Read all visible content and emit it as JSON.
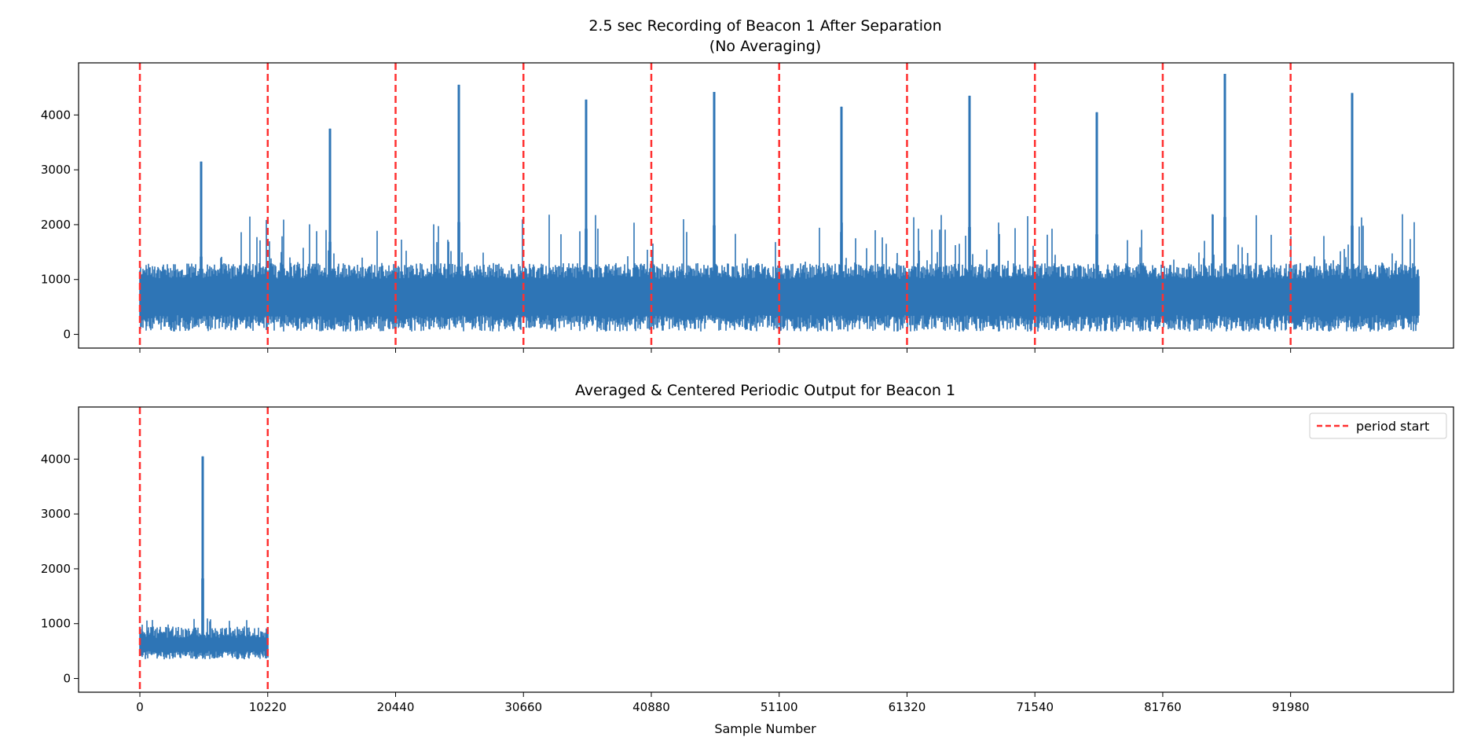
{
  "chart_data": [
    {
      "type": "line",
      "title": "2.5 sec Recording of Beacon 1 After Separation",
      "subtitle": "(No Averaging)",
      "xlabel": "",
      "ylabel": "",
      "xlim": [
        -4900,
        105000
      ],
      "ylim": [
        -250,
        4950
      ],
      "yticks": [
        0,
        1000,
        2000,
        3000,
        4000
      ],
      "xticks": [
        0,
        10220,
        20440,
        30660,
        40880,
        51100,
        61320,
        71540,
        81760,
        91980
      ],
      "x_tick_labels_shown": false,
      "grid": false,
      "line_color": "#2e75b6",
      "vline_color": "#ff3030",
      "period_starts": [
        0,
        10220,
        20440,
        30660,
        40880,
        51100,
        61320,
        71540,
        81760,
        91980
      ],
      "series": [
        {
          "x_range": [
            0,
            102200
          ],
          "noise_floor": [
            50,
            350
          ],
          "noise_typical_max": 1300,
          "noise_peak_max": 2200,
          "spikes": [
            {
              "x": 4900,
              "y": 3150
            },
            {
              "x": 15200,
              "y": 3750
            },
            {
              "x": 25500,
              "y": 4550
            },
            {
              "x": 35700,
              "y": 4280
            },
            {
              "x": 45900,
              "y": 4420
            },
            {
              "x": 56100,
              "y": 4150
            },
            {
              "x": 66300,
              "y": 4350
            },
            {
              "x": 76500,
              "y": 4050
            },
            {
              "x": 86700,
              "y": 4750
            },
            {
              "x": 96900,
              "y": 4400
            }
          ]
        }
      ]
    },
    {
      "type": "line",
      "title": "Averaged & Centered Periodic Output for Beacon 1",
      "xlabel": "Sample Number",
      "ylabel": "",
      "xlim": [
        -4900,
        105000
      ],
      "ylim": [
        -250,
        4950
      ],
      "yticks": [
        0,
        1000,
        2000,
        3000,
        4000
      ],
      "xticks": [
        0,
        10220,
        20440,
        30660,
        40880,
        51100,
        61320,
        71540,
        81760,
        91980
      ],
      "x_tick_labels_shown": true,
      "grid": false,
      "legend": {
        "placement": "top-right",
        "entries": [
          "period start"
        ]
      },
      "line_color": "#2e75b6",
      "vline_color": "#ff3030",
      "period_starts": [
        0,
        10220
      ],
      "series": [
        {
          "x_range": [
            0,
            10220
          ],
          "noise_floor": [
            350,
            500
          ],
          "noise_typical_max": 950,
          "noise_peak_max": 1100,
          "spikes": [
            {
              "x": 5000,
              "y": 4050
            }
          ]
        }
      ]
    }
  ]
}
